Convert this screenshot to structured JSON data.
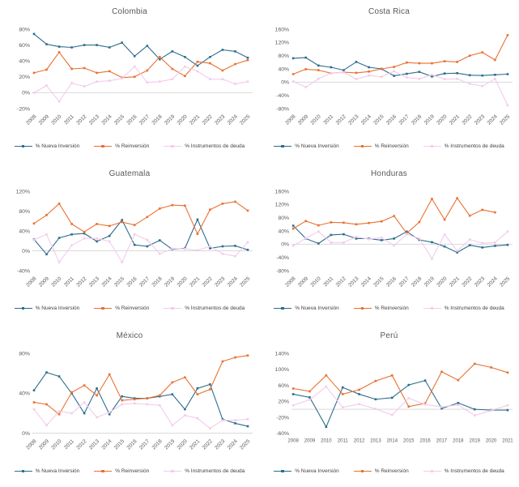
{
  "page": {
    "background": "#ffffff"
  },
  "colors": {
    "nueva_inversion": "#2e6d8c",
    "reinversion": "#e97132",
    "instrumentos_deuda": "#f3cbec",
    "axis_text": "#595959",
    "title_text": "#595959",
    "legend_text": "#3f3f3f",
    "zero_line": "#d9d9d9"
  },
  "legend": [
    "% Nueva Inversión",
    "% Reinversión",
    "% Instrumentos de deuda"
  ],
  "chart_data": [
    {
      "type": "line",
      "title": "Colombia",
      "x": [
        "2008",
        "2009",
        "2010",
        "2011",
        "2012",
        "2013",
        "2014",
        "2015",
        "2016",
        "2017",
        "2018",
        "2019",
        "2020",
        "2021",
        "2022",
        "2023",
        "2024",
        "2025"
      ],
      "x_rotated": true,
      "ylim": [
        -20,
        80
      ],
      "yticks": [
        80,
        60,
        40,
        20,
        0,
        -20
      ],
      "xlabel": "",
      "ylabel": "",
      "grid": false,
      "legend_position": "bottom",
      "series": [
        {
          "name": "% Nueva Inversión",
          "color": "#2e6d8c",
          "values": [
            74,
            61,
            58,
            57,
            60,
            60,
            57,
            63,
            46,
            59,
            42,
            52,
            45,
            34,
            45,
            54,
            52,
            44
          ]
        },
        {
          "name": "% Reinversión",
          "color": "#e97132",
          "values": [
            25,
            29,
            51,
            30,
            31,
            25,
            27,
            19,
            20,
            28,
            45,
            30,
            21,
            39,
            37,
            28,
            36,
            41
          ]
        },
        {
          "name": "% Instrumentos de deuda",
          "color": "#f3cbec",
          "values": [
            0,
            9,
            -11,
            12,
            8,
            14,
            15,
            18,
            33,
            13,
            14,
            17,
            33,
            27,
            17,
            17,
            11,
            14
          ]
        }
      ]
    },
    {
      "type": "line",
      "title": "Costa Rica",
      "x": [
        "2008",
        "2009",
        "2010",
        "2011",
        "2012",
        "2013",
        "2014",
        "2015",
        "2016",
        "2017",
        "2018",
        "2019",
        "2020",
        "2021",
        "2022",
        "2023",
        "2024",
        "2025"
      ],
      "x_rotated": true,
      "ylim": [
        -80,
        160
      ],
      "yticks": [
        160,
        120,
        80,
        40,
        0,
        -40,
        -80
      ],
      "xlabel": "",
      "ylabel": "",
      "grid": false,
      "legend_position": "bottom",
      "series": [
        {
          "name": "% Nueva Inversión",
          "color": "#2e6d8c",
          "values": [
            72,
            74,
            50,
            45,
            36,
            61,
            45,
            40,
            19,
            25,
            31,
            17,
            26,
            27,
            21,
            20,
            22,
            24
          ]
        },
        {
          "name": "% Reinversión",
          "color": "#e97132",
          "values": [
            24,
            39,
            36,
            27,
            30,
            28,
            32,
            40,
            46,
            59,
            57,
            57,
            63,
            61,
            80,
            90,
            67,
            142
          ]
        },
        {
          "name": "% Instrumentos de deuda",
          "color": "#f3cbec",
          "values": [
            2,
            -15,
            10,
            27,
            30,
            9,
            20,
            16,
            33,
            14,
            10,
            22,
            9,
            10,
            -5,
            -12,
            10,
            -70
          ]
        }
      ]
    },
    {
      "type": "line",
      "title": "Guatemala",
      "x": [
        "2008",
        "2009",
        "2010",
        "2011",
        "2012",
        "2013",
        "2014",
        "2015",
        "2016",
        "2017",
        "2018",
        "2019",
        "2020",
        "2021",
        "2022",
        "2023",
        "2024",
        "2025"
      ],
      "x_rotated": true,
      "ylim": [
        -40,
        120
      ],
      "yticks": [
        120,
        80,
        40,
        0,
        -40
      ],
      "xlabel": "",
      "ylabel": "",
      "grid": false,
      "legend_position": "bottom",
      "series": [
        {
          "name": "% Nueva Inversión",
          "color": "#2e6d8c",
          "values": [
            23,
            -7,
            26,
            33,
            35,
            19,
            30,
            62,
            12,
            9,
            21,
            3,
            5,
            63,
            5,
            9,
            10,
            2
          ]
        },
        {
          "name": "% Reinversión",
          "color": "#e97132",
          "values": [
            55,
            72,
            95,
            54,
            38,
            54,
            50,
            58,
            52,
            68,
            85,
            92,
            91,
            34,
            83,
            95,
            99,
            81
          ]
        },
        {
          "name": "% Instrumentos de deuda",
          "color": "#f3cbec",
          "values": [
            22,
            33,
            -23,
            11,
            25,
            25,
            19,
            -23,
            33,
            22,
            -6,
            4,
            4,
            1,
            9,
            -6,
            -11,
            17
          ]
        }
      ]
    },
    {
      "type": "line",
      "title": "Honduras",
      "x": [
        "2008",
        "2009",
        "2010",
        "2011",
        "2012",
        "2013",
        "2014",
        "2015",
        "2016",
        "2017",
        "2018",
        "2019",
        "2020",
        "2021",
        "2022",
        "2023",
        "2024",
        "2025"
      ],
      "x_rotated": true,
      "ylim": [
        -80,
        160
      ],
      "yticks": [
        160,
        120,
        80,
        40,
        0,
        -40,
        -80
      ],
      "xlabel": "",
      "ylabel": "",
      "grid": false,
      "legend_position": "bottom",
      "series": [
        {
          "name": "% Nueva Inversión",
          "color": "#2e6d8c",
          "values": [
            56,
            17,
            2,
            28,
            30,
            17,
            17,
            12,
            17,
            38,
            13,
            6,
            -7,
            -25,
            -3,
            -10,
            -5,
            -2
          ]
        },
        {
          "name": "% Reinversión",
          "color": "#e97132",
          "values": [
            47,
            70,
            57,
            66,
            65,
            60,
            64,
            69,
            85,
            33,
            67,
            137,
            74,
            139,
            86,
            104,
            96,
            null
          ]
        },
        {
          "name": "% Instrumentos de deuda",
          "color": "#f3cbec",
          "values": [
            -5,
            18,
            38,
            5,
            5,
            22,
            15,
            20,
            -4,
            30,
            17,
            -44,
            29,
            -20,
            14,
            3,
            5,
            38
          ]
        }
      ]
    },
    {
      "type": "line",
      "title": "México",
      "x": [
        "2008",
        "2009",
        "2010",
        "2011",
        "2012",
        "2013",
        "2014",
        "2015",
        "2016",
        "2017",
        "2018",
        "2019",
        "2020",
        "2021",
        "2022",
        "2023",
        "2024",
        "2025"
      ],
      "x_rotated": true,
      "ylim": [
        0,
        80
      ],
      "yticks": [
        80,
        40,
        0
      ],
      "xlabel": "",
      "ylabel": "",
      "grid": false,
      "legend_position": "bottom",
      "series": [
        {
          "name": "% Nueva Inversión",
          "color": "#2e6d8c",
          "values": [
            43,
            61,
            57,
            40,
            20,
            45,
            19,
            37,
            35,
            35,
            37,
            39,
            24,
            45,
            49,
            14,
            10,
            7
          ]
        },
        {
          "name": "% Reinversión",
          "color": "#e97132",
          "values": [
            31,
            29,
            19,
            41,
            48,
            38,
            59,
            33,
            34,
            35,
            38,
            51,
            56,
            39,
            44,
            72,
            76,
            78
          ]
        },
        {
          "name": "% Instrumentos de deuda",
          "color": "#f3cbec",
          "values": [
            24,
            8,
            22,
            20,
            31,
            16,
            21,
            29,
            30,
            29,
            28,
            8,
            18,
            15,
            5,
            13,
            13,
            14
          ]
        }
      ]
    },
    {
      "type": "line",
      "title": "Perú",
      "x": [
        "2008",
        "2009",
        "2010",
        "2011",
        "2012",
        "2013",
        "2014",
        "2015",
        "2016",
        "2017",
        "2018",
        "2019",
        "2020",
        "2021"
      ],
      "x_rotated": false,
      "ylim": [
        -60,
        140
      ],
      "yticks": [
        140,
        100,
        60,
        20,
        -20,
        -60
      ],
      "xlabel": "",
      "ylabel": "",
      "grid": false,
      "legend_position": "bottom",
      "series": [
        {
          "name": "% Nueva Inversión",
          "color": "#2e6d8c",
          "values": [
            38,
            30,
            -44,
            55,
            38,
            25,
            29,
            61,
            72,
            2,
            16,
            0,
            -2,
            -2
          ]
        },
        {
          "name": "% Reinversión",
          "color": "#e97132",
          "values": [
            52,
            45,
            85,
            38,
            49,
            71,
            85,
            7,
            15,
            94,
            73,
            114,
            105,
            92
          ]
        },
        {
          "name": "% Instrumentos de deuda",
          "color": "#f3cbec",
          "values": [
            10,
            24,
            57,
            5,
            13,
            1,
            -14,
            28,
            12,
            6,
            11,
            -15,
            -3,
            10
          ]
        }
      ]
    }
  ]
}
